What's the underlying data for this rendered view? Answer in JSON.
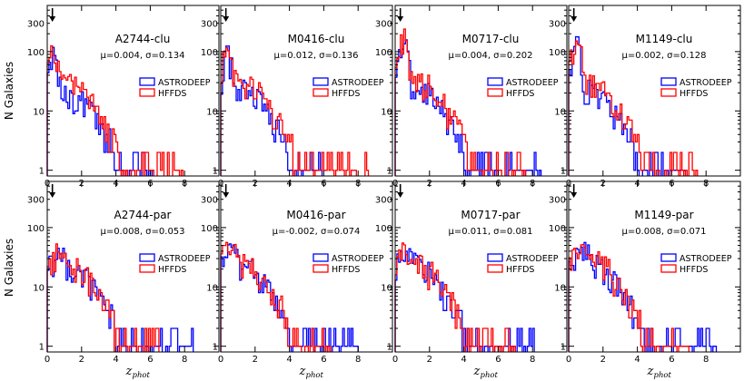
{
  "figure": {
    "ylabel": "N Galaxies",
    "xlabel_main": "z",
    "xlabel_sub": "phot",
    "legend_series": [
      "ASTRODEEP",
      "HFFDS"
    ],
    "colors": {
      "ASTRODEEP": "#0000ff",
      "HFFDS": "#ff0000",
      "axis": "#000000"
    },
    "y_tick_labels": [
      "1",
      "10",
      "100",
      "300"
    ],
    "x_tick_labels": [
      "0",
      "2",
      "4",
      "6",
      "8"
    ]
  },
  "chart_data": [
    {
      "type": "bar",
      "subtype": "step-histogram",
      "title": "A2744-clu",
      "stats": "μ=0.004, σ=0.134",
      "xlim": [
        0,
        10
      ],
      "ylim": [
        0.8,
        600
      ],
      "yscale": "log",
      "has_marker": true,
      "series": [
        {
          "name": "ASTRODEEP",
          "peak_z": 0.35,
          "peak_n": 115,
          "plateau_n": 28,
          "tail_end_z": 6.2
        },
        {
          "name": "HFFDS",
          "peak_z": 0.3,
          "peak_n": 150,
          "plateau_n": 40,
          "tail_end_z": 7.9
        }
      ]
    },
    {
      "type": "bar",
      "subtype": "step-histogram",
      "title": "M0416-clu",
      "stats": "μ=0.012, σ=0.136",
      "xlim": [
        0,
        10
      ],
      "ylim": [
        0.8,
        600
      ],
      "yscale": "log",
      "has_marker": true,
      "series": [
        {
          "name": "ASTRODEEP",
          "peak_z": 0.4,
          "peak_n": 100,
          "plateau_n": 30,
          "tail_end_z": 6.0
        },
        {
          "name": "HFFDS",
          "peak_z": 0.35,
          "peak_n": 120,
          "plateau_n": 42,
          "tail_end_z": 8.6
        }
      ]
    },
    {
      "type": "bar",
      "subtype": "step-histogram",
      "title": "M0717-clu",
      "stats": "μ=0.004, σ=0.202",
      "xlim": [
        0,
        10
      ],
      "ylim": [
        0.8,
        600
      ],
      "yscale": "log",
      "has_marker": true,
      "series": [
        {
          "name": "ASTRODEEP",
          "peak_z": 0.55,
          "peak_n": 150,
          "plateau_n": 32,
          "tail_end_z": 8.5
        },
        {
          "name": "HFFDS",
          "peak_z": 0.5,
          "peak_n": 190,
          "plateau_n": 45,
          "tail_end_z": 7.6
        }
      ]
    },
    {
      "type": "bar",
      "subtype": "step-histogram",
      "title": "M1149-clu",
      "stats": "μ=0.002, σ=0.128",
      "xlim": [
        0,
        10
      ],
      "ylim": [
        0.8,
        600
      ],
      "yscale": "log",
      "has_marker": true,
      "series": [
        {
          "name": "ASTRODEEP",
          "peak_z": 0.5,
          "peak_n": 150,
          "plateau_n": 28,
          "tail_end_z": 6.8
        },
        {
          "name": "HFFDS",
          "peak_z": 0.5,
          "peak_n": 170,
          "plateau_n": 40,
          "tail_end_z": 7.5
        }
      ]
    },
    {
      "type": "bar",
      "subtype": "step-histogram",
      "title": "A2744-par",
      "stats": "μ=0.008, σ=0.053",
      "xlim": [
        0,
        10
      ],
      "ylim": [
        0.8,
        600
      ],
      "yscale": "log",
      "has_marker": true,
      "series": [
        {
          "name": "ASTRODEEP",
          "peak_z": 0.7,
          "peak_n": 40,
          "plateau_n": 28,
          "tail_end_z": 8.5
        },
        {
          "name": "HFFDS",
          "peak_z": 0.6,
          "peak_n": 42,
          "plateau_n": 30,
          "tail_end_z": 6.5
        }
      ]
    },
    {
      "type": "bar",
      "subtype": "step-histogram",
      "title": "M0416-par",
      "stats": "μ=-0.002, σ=0.074",
      "xlim": [
        0,
        10
      ],
      "ylim": [
        0.8,
        600
      ],
      "yscale": "log",
      "has_marker": true,
      "series": [
        {
          "name": "ASTRODEEP",
          "peak_z": 0.6,
          "peak_n": 45,
          "plateau_n": 30,
          "tail_end_z": 8.0
        },
        {
          "name": "HFFDS",
          "peak_z": 0.6,
          "peak_n": 48,
          "plateau_n": 32,
          "tail_end_z": 6.5
        }
      ]
    },
    {
      "type": "bar",
      "subtype": "step-histogram",
      "title": "M0717-par",
      "stats": "μ=0.011, σ=0.081",
      "xlim": [
        0,
        10
      ],
      "ylim": [
        0.8,
        600
      ],
      "yscale": "log",
      "has_marker": true,
      "series": [
        {
          "name": "ASTRODEEP",
          "peak_z": 0.6,
          "peak_n": 42,
          "plateau_n": 28,
          "tail_end_z": 8.2
        },
        {
          "name": "HFFDS",
          "peak_z": 0.6,
          "peak_n": 45,
          "plateau_n": 30,
          "tail_end_z": 7.0
        }
      ]
    },
    {
      "type": "bar",
      "subtype": "step-histogram",
      "title": "M1149-par",
      "stats": "μ=0.008, σ=0.071",
      "xlim": [
        0,
        10
      ],
      "ylim": [
        0.8,
        600
      ],
      "yscale": "log",
      "has_marker": true,
      "series": [
        {
          "name": "ASTRODEEP",
          "peak_z": 0.9,
          "peak_n": 45,
          "plateau_n": 32,
          "tail_end_z": 8.6
        },
        {
          "name": "HFFDS",
          "peak_z": 0.9,
          "peak_n": 55,
          "plateau_n": 35,
          "tail_end_z": 7.0
        }
      ]
    }
  ]
}
